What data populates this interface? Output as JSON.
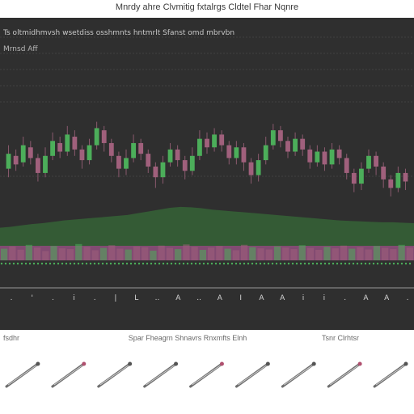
{
  "page": {
    "title": "Mnrdy ahre Clvmitig fxtalrgs Cldtel Fhar Nqnre",
    "header_line": "Ts oltmidhmvsh wsetdiss osshmnts hntmrlt Sfanst omd mbrvbn",
    "indicator_label": "Mrnsd Aff",
    "captions": {
      "left": "fsdhr",
      "middle": "Spar Fheagrn Shnavrs Rnxmfts Elnh",
      "right": "Tsnr Clrhtsr"
    },
    "tool_items": [
      "tool-1",
      "tool-2",
      "tool-3",
      "tool-4",
      "tool-5",
      "tool-6",
      "tool-7",
      "tool-8",
      "tool-9"
    ]
  },
  "chart_data": {
    "type": "bar",
    "title": "",
    "xlabel": "",
    "ylabel": "",
    "grid": true,
    "background": "#2f2f2f",
    "colors": {
      "bull": "#4cae5a",
      "bear": "#a0607c",
      "wick": "#8a5a6e",
      "band_green": "#355e36",
      "band_pink": "#8c4f7a",
      "grid": "#555555"
    },
    "candles": {
      "ylim": [
        0,
        100
      ],
      "bars": [
        {
          "o": 48,
          "c": 62,
          "h": 70,
          "l": 40
        },
        {
          "o": 60,
          "c": 52,
          "h": 66,
          "l": 46
        },
        {
          "o": 54,
          "c": 70,
          "h": 78,
          "l": 50
        },
        {
          "o": 68,
          "c": 58,
          "h": 74,
          "l": 52
        },
        {
          "o": 58,
          "c": 44,
          "h": 62,
          "l": 36
        },
        {
          "o": 44,
          "c": 60,
          "h": 68,
          "l": 40
        },
        {
          "o": 60,
          "c": 74,
          "h": 82,
          "l": 56
        },
        {
          "o": 72,
          "c": 64,
          "h": 78,
          "l": 58
        },
        {
          "o": 64,
          "c": 80,
          "h": 88,
          "l": 60
        },
        {
          "o": 78,
          "c": 66,
          "h": 84,
          "l": 60
        },
        {
          "o": 66,
          "c": 56,
          "h": 70,
          "l": 48
        },
        {
          "o": 56,
          "c": 70,
          "h": 76,
          "l": 52
        },
        {
          "o": 70,
          "c": 86,
          "h": 92,
          "l": 66
        },
        {
          "o": 84,
          "c": 72,
          "h": 88,
          "l": 64
        },
        {
          "o": 72,
          "c": 60,
          "h": 76,
          "l": 54
        },
        {
          "o": 60,
          "c": 48,
          "h": 64,
          "l": 40
        },
        {
          "o": 48,
          "c": 58,
          "h": 66,
          "l": 42
        },
        {
          "o": 58,
          "c": 72,
          "h": 80,
          "l": 54
        },
        {
          "o": 72,
          "c": 62,
          "h": 76,
          "l": 56
        },
        {
          "o": 62,
          "c": 50,
          "h": 66,
          "l": 44
        },
        {
          "o": 50,
          "c": 40,
          "h": 54,
          "l": 30
        },
        {
          "o": 40,
          "c": 54,
          "h": 60,
          "l": 34
        },
        {
          "o": 54,
          "c": 66,
          "h": 72,
          "l": 50
        },
        {
          "o": 66,
          "c": 56,
          "h": 70,
          "l": 50
        },
        {
          "o": 56,
          "c": 46,
          "h": 60,
          "l": 38
        },
        {
          "o": 46,
          "c": 60,
          "h": 68,
          "l": 42
        },
        {
          "o": 60,
          "c": 76,
          "h": 84,
          "l": 56
        },
        {
          "o": 76,
          "c": 68,
          "h": 82,
          "l": 62
        },
        {
          "o": 68,
          "c": 80,
          "h": 86,
          "l": 64
        },
        {
          "o": 80,
          "c": 70,
          "h": 84,
          "l": 64
        },
        {
          "o": 70,
          "c": 58,
          "h": 74,
          "l": 52
        },
        {
          "o": 58,
          "c": 68,
          "h": 74,
          "l": 52
        },
        {
          "o": 68,
          "c": 54,
          "h": 72,
          "l": 46
        },
        {
          "o": 54,
          "c": 42,
          "h": 58,
          "l": 34
        },
        {
          "o": 42,
          "c": 56,
          "h": 62,
          "l": 36
        },
        {
          "o": 56,
          "c": 70,
          "h": 78,
          "l": 52
        },
        {
          "o": 70,
          "c": 84,
          "h": 90,
          "l": 66
        },
        {
          "o": 84,
          "c": 74,
          "h": 88,
          "l": 68
        },
        {
          "o": 74,
          "c": 64,
          "h": 78,
          "l": 58
        },
        {
          "o": 64,
          "c": 76,
          "h": 82,
          "l": 60
        },
        {
          "o": 76,
          "c": 66,
          "h": 80,
          "l": 60
        },
        {
          "o": 66,
          "c": 54,
          "h": 70,
          "l": 48
        },
        {
          "o": 54,
          "c": 64,
          "h": 70,
          "l": 50
        },
        {
          "o": 64,
          "c": 52,
          "h": 68,
          "l": 46
        },
        {
          "o": 52,
          "c": 66,
          "h": 72,
          "l": 48
        },
        {
          "o": 66,
          "c": 58,
          "h": 70,
          "l": 52
        },
        {
          "o": 58,
          "c": 44,
          "h": 62,
          "l": 38
        },
        {
          "o": 44,
          "c": 34,
          "h": 48,
          "l": 26
        },
        {
          "o": 34,
          "c": 48,
          "h": 54,
          "l": 28
        },
        {
          "o": 48,
          "c": 60,
          "h": 66,
          "l": 44
        },
        {
          "o": 60,
          "c": 50,
          "h": 64,
          "l": 42
        },
        {
          "o": 50,
          "c": 38,
          "h": 54,
          "l": 30
        },
        {
          "o": 38,
          "c": 30,
          "h": 42,
          "l": 22
        },
        {
          "o": 30,
          "c": 44,
          "h": 50,
          "l": 26
        },
        {
          "o": 44,
          "c": 36,
          "h": 48,
          "l": 28
        }
      ]
    },
    "area": {
      "ylim": [
        0,
        100
      ],
      "values": [
        40,
        42,
        45,
        48,
        50,
        53,
        56,
        58,
        60,
        62,
        64,
        66,
        68,
        72,
        76,
        80,
        84,
        86,
        85,
        83,
        80,
        78,
        76,
        74,
        72,
        70,
        68,
        66,
        64,
        62,
        60,
        58,
        56,
        55,
        54,
        53,
        52,
        52,
        51,
        50
      ]
    },
    "volume": {
      "ylim": [
        0,
        100
      ],
      "values": [
        60,
        72,
        55,
        80,
        66,
        48,
        74,
        62,
        58,
        84,
        70,
        52,
        64,
        78,
        60,
        56,
        72,
        68,
        50,
        76,
        64,
        58,
        82,
        70,
        54,
        66,
        74,
        60,
        52,
        80,
        68,
        62,
        56,
        72,
        66,
        58,
        78,
        64,
        54,
        70,
        62,
        76,
        60,
        68,
        56,
        74,
        64,
        58,
        80,
        66
      ]
    },
    "x_ticks": [
      ".",
      "'",
      ".",
      "i",
      ".",
      "|",
      "L",
      "..",
      "A",
      "..",
      "A",
      "I",
      "A",
      "A",
      "i",
      "i",
      ".",
      "A",
      "A",
      "."
    ]
  }
}
